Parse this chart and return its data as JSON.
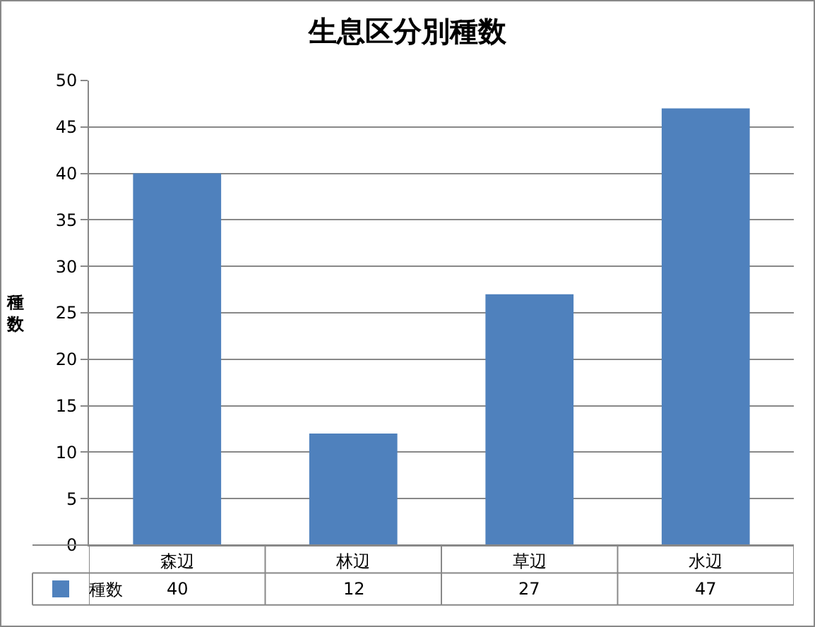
{
  "chart_data": {
    "type": "bar",
    "title": "生息区分別種数",
    "ylabel": "種数",
    "categories": [
      "森辺",
      "林辺",
      "草辺",
      "水辺"
    ],
    "series": [
      {
        "name": "種数",
        "color": "#4f81bd",
        "values": [
          40,
          12,
          27,
          47
        ]
      }
    ],
    "ylim": [
      0,
      50
    ],
    "yticks": [
      0,
      5,
      10,
      15,
      20,
      25,
      30,
      35,
      40,
      45,
      50
    ],
    "grid": "y",
    "data_labels": true,
    "legend": "bottom left"
  }
}
